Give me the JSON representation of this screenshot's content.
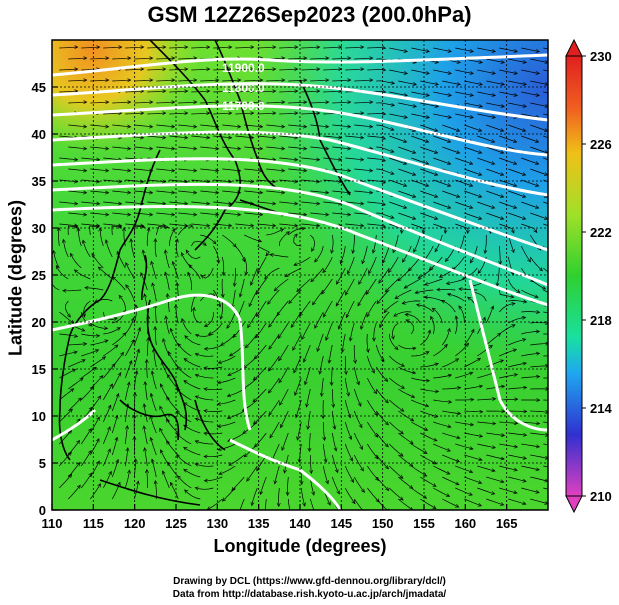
{
  "title": "GSM 12Z26Sep2023 (200.0hPa)",
  "xlabel": "Longitude (degrees)",
  "ylabel": "Latitude  (degrees)",
  "credit_line1": "Drawing by DCL (https://www.gfd-dennou.org/library/dcl/)",
  "credit_line2": "Data from http://database.rish.kyoto-u.ac.jp/arch/jmadata/",
  "contour_labels": [
    "11900.0",
    "11800.0",
    "11700.0"
  ],
  "colors": {
    "background": "#ffffff",
    "contour": "#ffffff",
    "streamline": "#000000",
    "grid": "#000000"
  },
  "chart_data": {
    "type": "heatmap",
    "x_range": [
      110,
      170
    ],
    "y_range": [
      0,
      50
    ],
    "x_ticks": [
      110,
      115,
      120,
      125,
      130,
      135,
      140,
      145,
      150,
      155,
      160,
      165
    ],
    "y_ticks": [
      0,
      5,
      10,
      15,
      20,
      25,
      30,
      35,
      40,
      45
    ],
    "colorbar": {
      "range": [
        210,
        230
      ],
      "ticks": [
        230,
        226,
        222,
        218,
        214,
        210
      ],
      "colors": [
        "#e040c0",
        "#3030d0",
        "#1ea8f0",
        "#19e0a0",
        "#2fd02f",
        "#a0e028",
        "#f0c018",
        "#f06020",
        "#e02020"
      ]
    },
    "overlays": [
      "streamlines",
      "geopotential height contours",
      "coastlines",
      "lat-lon grid"
    ]
  }
}
